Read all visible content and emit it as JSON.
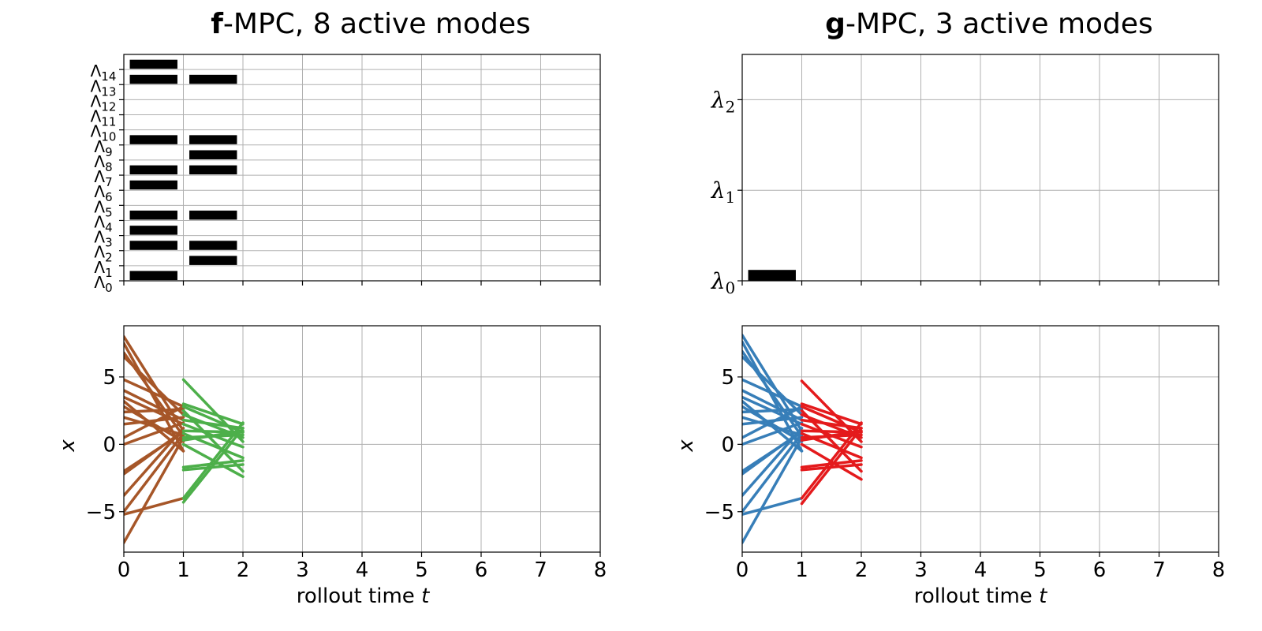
{
  "figure": {
    "left_title": {
      "bold": "f",
      "rest": "-MPC, 8 active modes"
    },
    "right_title": {
      "bold": "g",
      "rest": "-MPC, 3 active modes"
    },
    "xlabel": {
      "text": "rollout time ",
      "var": "t"
    },
    "ylabel": "x"
  },
  "chart_data": [
    {
      "id": "f-modes",
      "type": "bar",
      "orientation": "horizontal-timeline",
      "title": "f-MPC, 8 active modes",
      "xlim": [
        0,
        8
      ],
      "ylim": [
        0,
        15
      ],
      "grid": true,
      "xticks": [
        0,
        1,
        2,
        3,
        4,
        5,
        6,
        7,
        8
      ],
      "xtick_labels_visible": false,
      "ytick_labels": [
        {
          "sym": "Λ",
          "sub": "0"
        },
        {
          "sym": "Λ",
          "sub": "1"
        },
        {
          "sym": "Λ",
          "sub": "2"
        },
        {
          "sym": "Λ",
          "sub": "3"
        },
        {
          "sym": "Λ",
          "sub": "4"
        },
        {
          "sym": "Λ",
          "sub": "5"
        },
        {
          "sym": "Λ",
          "sub": "6"
        },
        {
          "sym": "Λ",
          "sub": "7"
        },
        {
          "sym": "Λ",
          "sub": "8"
        },
        {
          "sym": "Λ",
          "sub": "9"
        },
        {
          "sym": "Λ",
          "sub": "10"
        },
        {
          "sym": "Λ",
          "sub": "11"
        },
        {
          "sym": "Λ",
          "sub": "12"
        },
        {
          "sym": "Λ",
          "sub": "13"
        },
        {
          "sym": "Λ",
          "sub": "14"
        }
      ],
      "active_modes": [
        {
          "step": 0,
          "modes": [
            0,
            2,
            3,
            4,
            6,
            7,
            9,
            13,
            14
          ]
        },
        {
          "step": 1,
          "modes": [
            1,
            2,
            4,
            7,
            8,
            9,
            13
          ]
        }
      ],
      "bar_color": "#000000"
    },
    {
      "id": "g-modes",
      "type": "bar",
      "orientation": "horizontal-timeline",
      "title": "g-MPC, 3 active modes",
      "xlim": [
        0,
        8
      ],
      "ylim": [
        0,
        2.5
      ],
      "grid": true,
      "xticks": [
        0,
        1,
        2,
        3,
        4,
        5,
        6,
        7,
        8
      ],
      "xtick_labels_visible": false,
      "ytick_labels": [
        {
          "sym": "λ",
          "sub": "0"
        },
        {
          "sym": "λ",
          "sub": "1"
        },
        {
          "sym": "λ",
          "sub": "2"
        }
      ],
      "active_modes": [
        {
          "step": 0,
          "modes": [
            0
          ]
        }
      ],
      "bar_color": "#000000"
    },
    {
      "id": "f-traj",
      "type": "line",
      "xlim": [
        0,
        8
      ],
      "ylim": [
        -8,
        8.8
      ],
      "grid": true,
      "xticks": [
        0,
        1,
        2,
        3,
        4,
        5,
        6,
        7,
        8
      ],
      "yticks": [
        -5,
        0,
        5
      ],
      "xlabel": "rollout time t",
      "ylabel": "x",
      "series": [
        {
          "color": "#a65628",
          "segments": [
            [
              8.0,
              1.0
            ],
            [
              7.5,
              -0.5
            ],
            [
              6.8,
              0.6
            ],
            [
              6.5,
              2.2
            ],
            [
              4.8,
              2.8
            ],
            [
              4.0,
              1.8
            ],
            [
              3.5,
              1.5
            ],
            [
              2.8,
              0.2
            ],
            [
              2.4,
              2.6
            ],
            [
              2.0,
              0.7
            ],
            [
              1.5,
              2.0
            ],
            [
              0.5,
              2.8
            ],
            [
              0.0,
              1.6
            ],
            [
              -2.0,
              0.9
            ],
            [
              -2.2,
              1.0
            ],
            [
              -3.8,
              1.2
            ],
            [
              -5.2,
              -4.0
            ],
            [
              -5.0,
              0.8
            ],
            [
              -7.3,
              0.5
            ],
            [
              3.2,
              -0.5
            ]
          ]
        },
        {
          "color": "#4daf4a",
          "segments": [
            [
              4.8,
              0.2
            ],
            [
              3.0,
              1.5
            ],
            [
              2.8,
              0.9
            ],
            [
              2.5,
              -2.0
            ],
            [
              2.2,
              0.5
            ],
            [
              1.8,
              1.2
            ],
            [
              1.5,
              -0.2
            ],
            [
              1.0,
              0.9
            ],
            [
              0.8,
              -1.0
            ],
            [
              0.5,
              0.7
            ],
            [
              0.3,
              1.0
            ],
            [
              0.0,
              -2.4
            ],
            [
              -1.7,
              -1.2
            ],
            [
              -1.9,
              -1.5
            ],
            [
              -4.0,
              1.6
            ],
            [
              -4.3,
              1.2
            ]
          ]
        }
      ]
    },
    {
      "id": "g-traj",
      "type": "line",
      "xlim": [
        0,
        8
      ],
      "ylim": [
        -8,
        8.8
      ],
      "grid": true,
      "xticks": [
        0,
        1,
        2,
        3,
        4,
        5,
        6,
        7,
        8
      ],
      "yticks": [
        -5,
        0,
        5
      ],
      "xlabel": "rollout time t",
      "ylabel": "x",
      "series": [
        {
          "color": "#377eb8",
          "segments": [
            [
              8.1,
              1.0
            ],
            [
              7.6,
              -0.5
            ],
            [
              6.9,
              0.6
            ],
            [
              6.5,
              2.2
            ],
            [
              4.8,
              2.8
            ],
            [
              4.0,
              1.8
            ],
            [
              3.5,
              1.5
            ],
            [
              2.8,
              0.2
            ],
            [
              2.4,
              2.6
            ],
            [
              2.0,
              0.7
            ],
            [
              1.5,
              2.0
            ],
            [
              0.5,
              2.8
            ],
            [
              0.0,
              1.6
            ],
            [
              -2.0,
              0.9
            ],
            [
              -2.2,
              1.0
            ],
            [
              -3.8,
              1.2
            ],
            [
              -5.2,
              -4.0
            ],
            [
              -5.0,
              0.8
            ],
            [
              -7.3,
              0.5
            ],
            [
              3.2,
              -0.5
            ]
          ]
        },
        {
          "color": "#e41a1c",
          "segments": [
            [
              4.7,
              0.2
            ],
            [
              3.0,
              1.5
            ],
            [
              2.8,
              0.9
            ],
            [
              2.5,
              -2.0
            ],
            [
              2.2,
              0.5
            ],
            [
              1.8,
              1.2
            ],
            [
              1.5,
              -0.2
            ],
            [
              1.0,
              0.9
            ],
            [
              0.8,
              -1.0
            ],
            [
              0.5,
              0.7
            ],
            [
              0.3,
              1.0
            ],
            [
              0.0,
              -2.6
            ],
            [
              -1.7,
              -1.2
            ],
            [
              -1.9,
              -1.5
            ],
            [
              -4.0,
              1.6
            ],
            [
              -4.4,
              1.2
            ]
          ]
        }
      ]
    }
  ]
}
